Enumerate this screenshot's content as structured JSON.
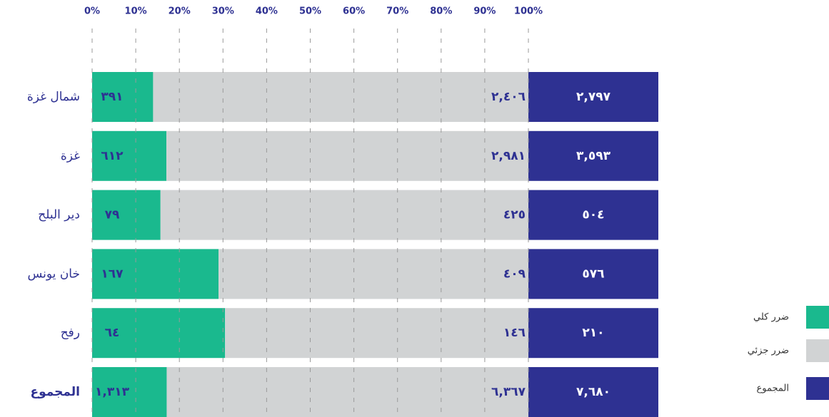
{
  "chart_data": {
    "type": "bar",
    "orientation": "horizontal",
    "stacked": "percent",
    "categories": [
      "شمال غزة",
      "غزة",
      "دير البلح",
      "خان يونس",
      "رفح",
      "المجموع"
    ],
    "series": [
      {
        "name": "ضرر كلي",
        "color": "#1ab98e",
        "values": [
          391,
          612,
          79,
          167,
          64,
          1313
        ],
        "value_labels": [
          "٣٩١",
          "٦١٢",
          "٧٩",
          "١٦٧",
          "٦٤",
          "١,٣١٣"
        ]
      },
      {
        "name": "ضرر جزئي",
        "color": "#d1d3d4",
        "values": [
          2406,
          2981,
          425,
          409,
          146,
          6367
        ],
        "value_labels": [
          "٢,٤٠٦",
          "٢,٩٨١",
          "٤٢٥",
          "٤٠٩",
          "١٤٦",
          "٦,٣٦٧"
        ]
      },
      {
        "name": "المجموع",
        "color": "#2e3192",
        "values": [
          2797,
          3593,
          504,
          576,
          210,
          7680
        ],
        "value_labels": [
          "٢,٧٩٧",
          "٣,٥٩٣",
          "٥٠٤",
          "٥٧٦",
          "٢١٠",
          "٧,٦٨٠"
        ]
      }
    ],
    "xlim": [
      0,
      100
    ],
    "xticks": [
      {
        "value": 0,
        "label": "0%"
      },
      {
        "value": 10,
        "label": "10%"
      },
      {
        "value": 20,
        "label": "20%"
      },
      {
        "value": 30,
        "label": "30%"
      },
      {
        "value": 40,
        "label": "40%"
      },
      {
        "value": 50,
        "label": "50%"
      },
      {
        "value": 60,
        "label": "60%"
      },
      {
        "value": 70,
        "label": "70%"
      },
      {
        "value": 80,
        "label": "80%"
      },
      {
        "value": 90,
        "label": "90%"
      },
      {
        "value": 100,
        "label": "100%"
      }
    ],
    "grid": true,
    "legend": "right"
  }
}
